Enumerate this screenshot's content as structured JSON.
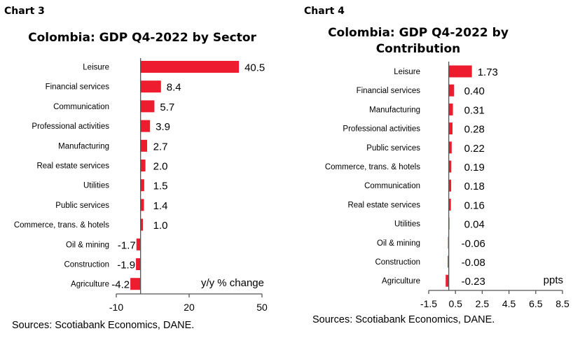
{
  "colors": {
    "bar": "#ed1c2e",
    "axis": "#555555"
  },
  "chart_data": [
    {
      "type": "bar",
      "orientation": "horizontal",
      "label": "Chart 3",
      "title": "Colombia: GDP Q4-2022 by Sector",
      "categories": [
        "Leisure",
        "Financial services",
        "Communication",
        "Professional activities",
        "Manufacturing",
        "Real estate services",
        "Utilities",
        "Public services",
        "Commerce, trans. & hotels",
        "Oil & mining",
        "Construction",
        "Agriculture"
      ],
      "values": [
        40.5,
        8.4,
        5.7,
        3.9,
        2.7,
        2.0,
        1.5,
        1.4,
        1.0,
        -1.7,
        -1.9,
        -4.2
      ],
      "value_labels": [
        "40.5",
        "8.4",
        "5.7",
        "3.9",
        "2.7",
        "2.0",
        "1.5",
        "1.4",
        "1.0",
        "-1.7",
        "-1.9",
        "-4.2"
      ],
      "xlim": [
        -10,
        50
      ],
      "xticks": [
        "-10",
        "20",
        "50"
      ],
      "unit_label": "y/y  % change",
      "source": "Sources:  Scotiabank Economics, DANE."
    },
    {
      "type": "bar",
      "orientation": "horizontal",
      "label": "Chart 4",
      "title_lines": [
        "Colombia: GDP Q4-2022 by",
        "Contribution"
      ],
      "categories": [
        "Leisure",
        "Financial services",
        "Manufacturing",
        "Professional activities",
        "Public services",
        "Commerce, trans. & hotels",
        "Communication",
        "Real estate services",
        "Utilities",
        "Oil & mining",
        "Construction",
        "Agriculture"
      ],
      "values": [
        1.73,
        0.4,
        0.31,
        0.28,
        0.22,
        0.19,
        0.18,
        0.16,
        0.04,
        -0.06,
        -0.08,
        -0.23
      ],
      "value_labels": [
        "1.73",
        "0.40",
        "0.31",
        "0.28",
        "0.22",
        "0.19",
        "0.18",
        "0.16",
        "0.04",
        "-0.06",
        "-0.08",
        "-0.23"
      ],
      "xlim": [
        -1.5,
        8.5
      ],
      "xticks": [
        "-1.5",
        "0.5",
        "2.5",
        "4.5",
        "6.5",
        "8.5"
      ],
      "unit_label": "ppts",
      "source": "Sources:  Scotiabank Economics, DANE."
    }
  ]
}
